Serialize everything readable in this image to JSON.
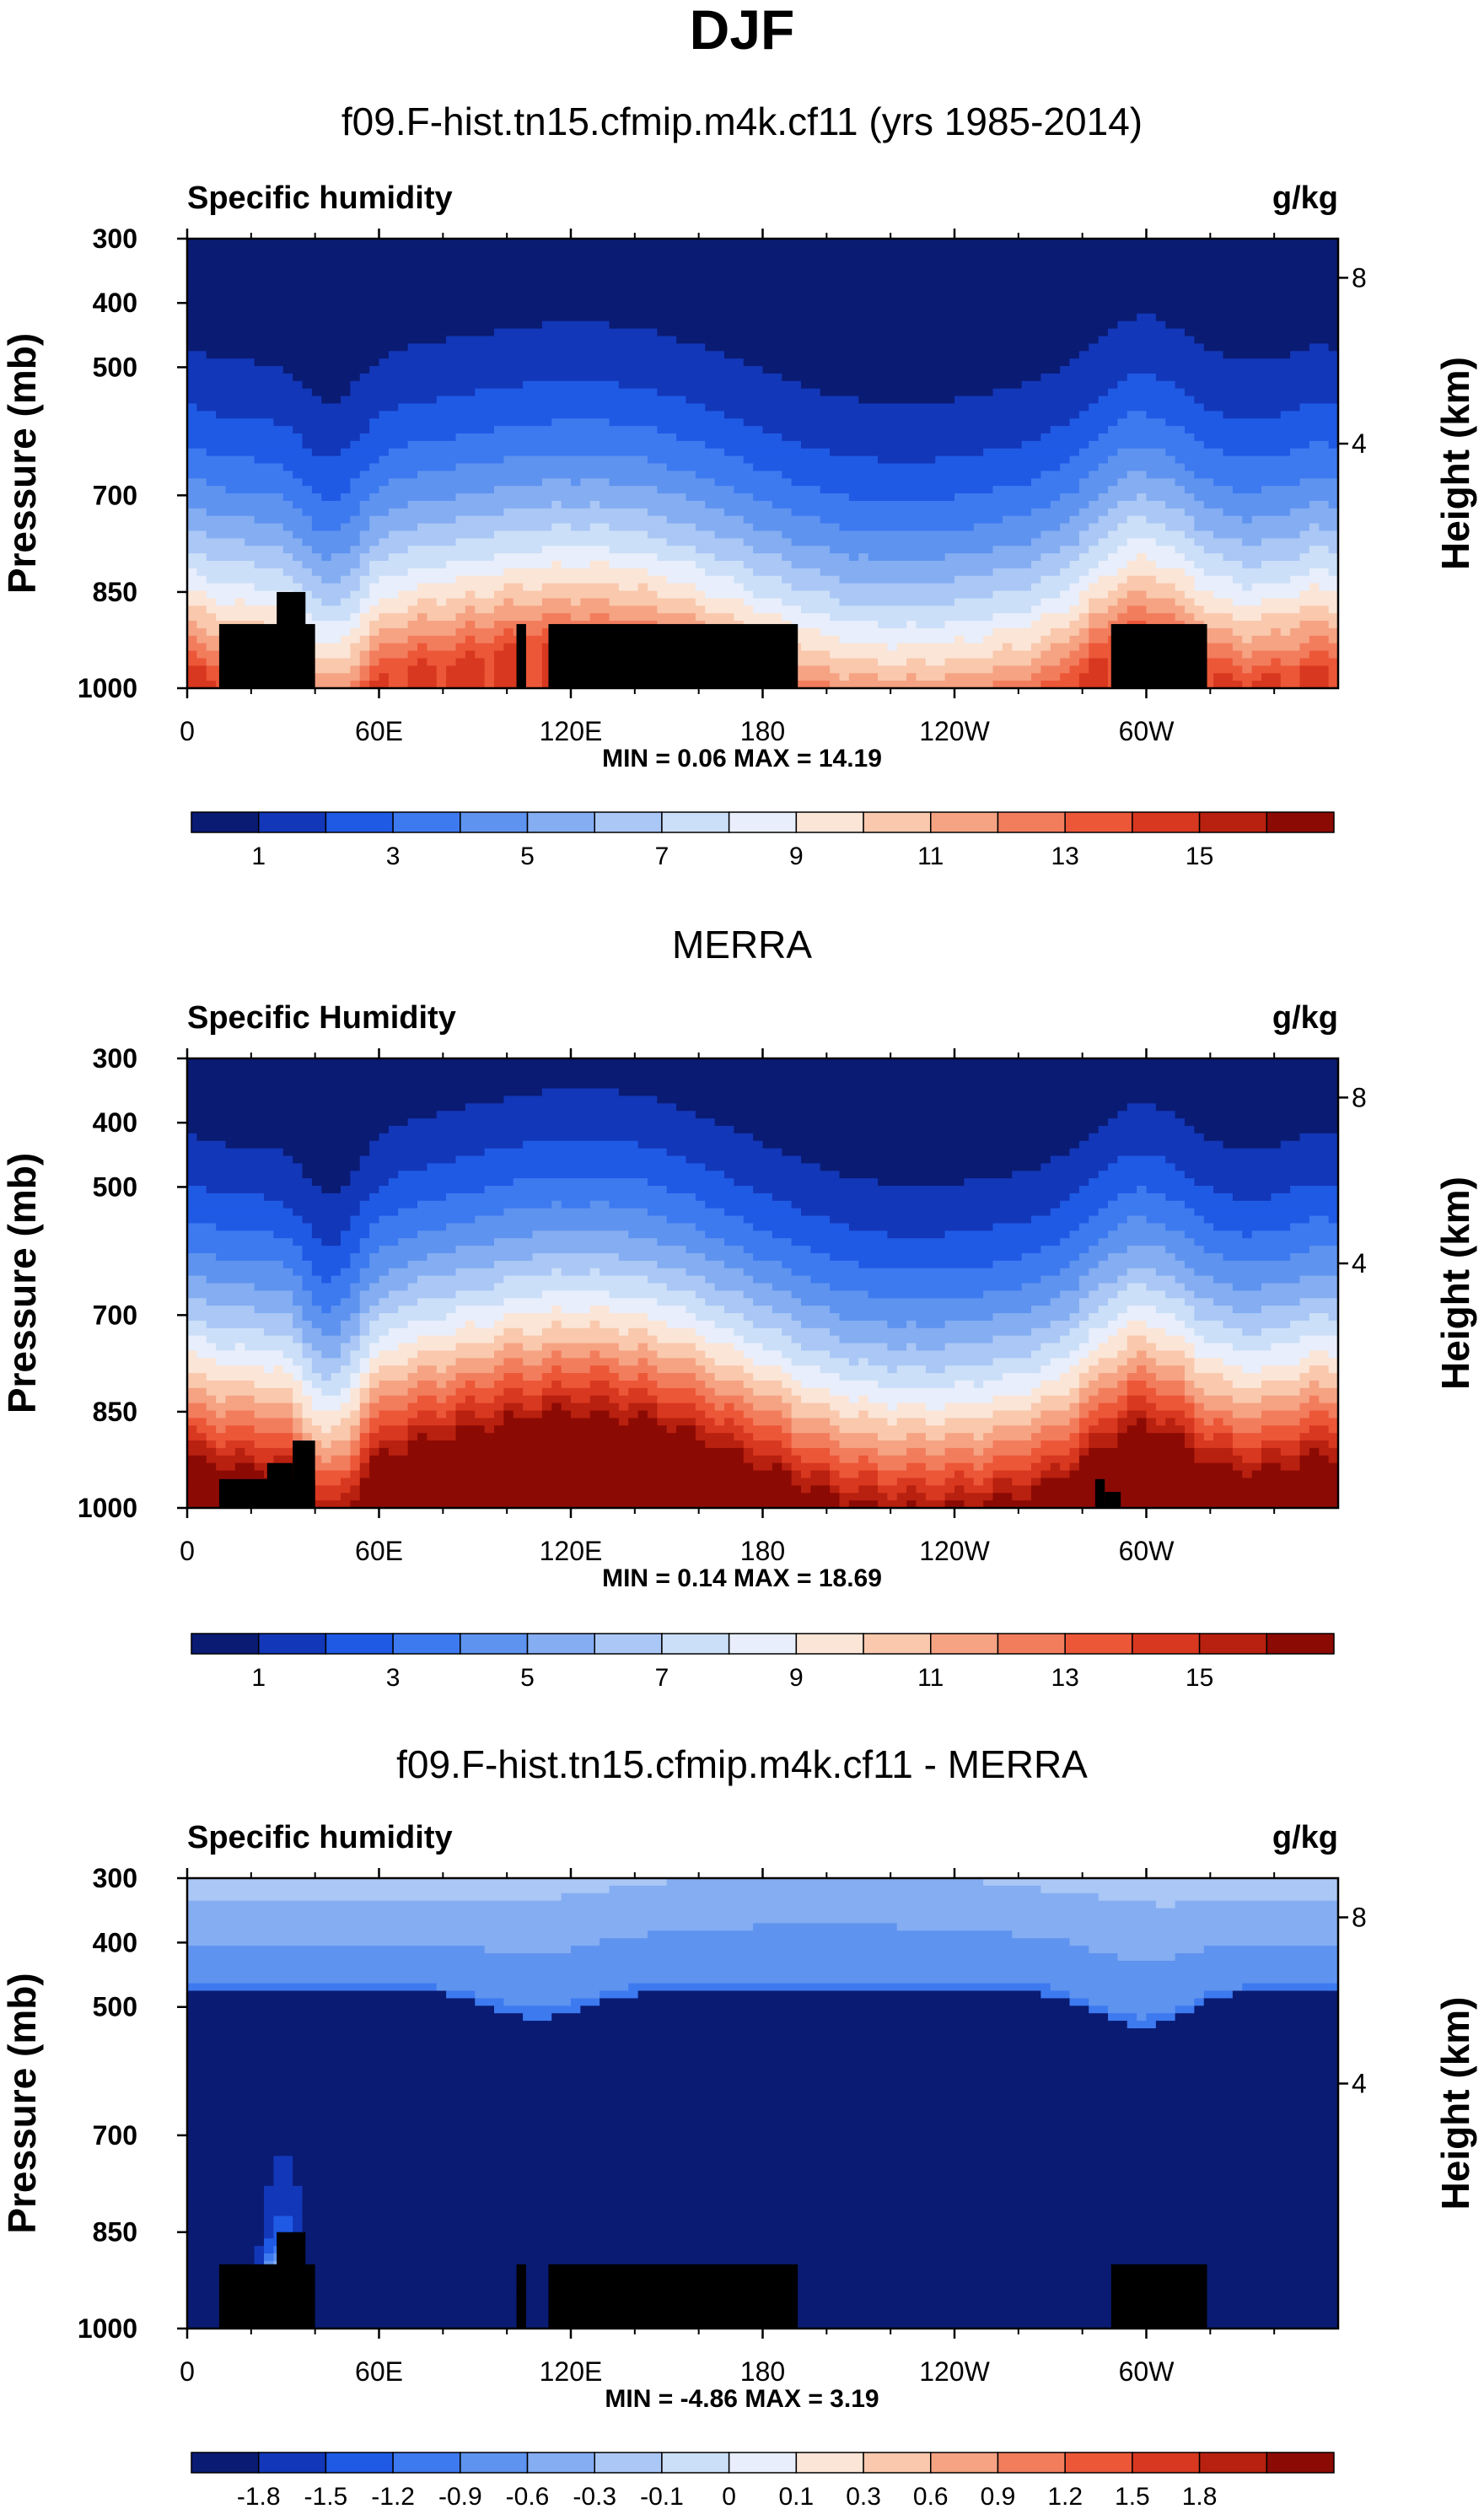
{
  "page": {
    "title": "DJF"
  },
  "chart_data": [
    {
      "type": "heatmap",
      "title": "f09.F-hist.tn15.cfmip.m4k.cf11 (yrs 1985-2014)",
      "left_label": "Specific humidity",
      "units": "g/kg",
      "ylabel": "Pressure (mb)",
      "y2label": "Height (km)",
      "xticks": [
        "0",
        "60E",
        "120E",
        "180",
        "120W",
        "60W"
      ],
      "yticks": [
        "300",
        "400",
        "500",
        "700",
        "850",
        "1000"
      ],
      "y2ticks": [
        "8",
        "4"
      ],
      "stats": "MIN =   0.06  MAX =  14.19",
      "colorbar_labels": [
        "1",
        "3",
        "5",
        "7",
        "9",
        "11",
        "13",
        "15"
      ],
      "field_range": [
        0.06,
        14.19
      ],
      "palette": [
        "#0a1b73",
        "#1237b8",
        "#1f5ae5",
        "#3d7af0",
        "#5e93ef",
        "#84adf2",
        "#aac7f5",
        "#cbdff8",
        "#e8eefb",
        "#fbe5d6",
        "#f9c8ad",
        "#f5a383",
        "#f27d5d",
        "#ec5738",
        "#d8381f",
        "#b8200f",
        "#8c0a04"
      ],
      "land_color": "#000000"
    },
    {
      "type": "heatmap",
      "title": "MERRA",
      "left_label": "Specific Humidity",
      "units": "g/kg",
      "ylabel": "Pressure (mb)",
      "y2label": "Height (km)",
      "xticks": [
        "0",
        "60E",
        "120E",
        "180",
        "120W",
        "60W"
      ],
      "yticks": [
        "300",
        "400",
        "500",
        "700",
        "850",
        "1000"
      ],
      "y2ticks": [
        "8",
        "4"
      ],
      "stats": "MIN =   0.14  MAX =  18.69",
      "colorbar_labels": [
        "1",
        "3",
        "5",
        "7",
        "9",
        "11",
        "13",
        "15"
      ],
      "field_range": [
        0.14,
        18.69
      ],
      "palette": [
        "#0a1b73",
        "#1237b8",
        "#1f5ae5",
        "#3d7af0",
        "#5e93ef",
        "#84adf2",
        "#aac7f5",
        "#cbdff8",
        "#e8eefb",
        "#fbe5d6",
        "#f9c8ad",
        "#f5a383",
        "#f27d5d",
        "#ec5738",
        "#d8381f",
        "#b8200f",
        "#8c0a04"
      ],
      "land_color": "#000000"
    },
    {
      "type": "heatmap",
      "title": "f09.F-hist.tn15.cfmip.m4k.cf11 - MERRA",
      "left_label": "Specific humidity",
      "units": "g/kg",
      "ylabel": "Pressure (mb)",
      "y2label": "Height (km)",
      "xticks": [
        "0",
        "60E",
        "120E",
        "180",
        "120W",
        "60W"
      ],
      "yticks": [
        "300",
        "400",
        "500",
        "700",
        "850",
        "1000"
      ],
      "y2ticks": [
        "8",
        "4"
      ],
      "stats": "MIN =  -4.86  MAX =   3.19",
      "colorbar_labels": [
        "-1.8",
        "-1.5",
        "-1.2",
        "-0.9",
        "-0.6",
        "-0.3",
        "-0.1",
        "0",
        "0.1",
        "0.3",
        "0.6",
        "0.9",
        "1.2",
        "1.5",
        "1.8"
      ],
      "field_range": [
        -4.86,
        3.19
      ],
      "palette": [
        "#0a1b73",
        "#1237b8",
        "#1f5ae5",
        "#3d7af0",
        "#5e93ef",
        "#84adf2",
        "#aac7f5",
        "#cbdff8",
        "#e8eefb",
        "#fbe5d6",
        "#f9c8ad",
        "#f5a383",
        "#f27d5d",
        "#ec5738",
        "#d8381f",
        "#b8200f",
        "#8c0a04"
      ],
      "land_color": "#000000"
    }
  ]
}
